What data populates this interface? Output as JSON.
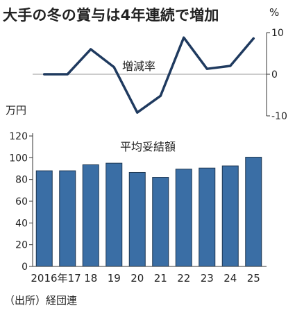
{
  "title": "大手の冬の賞与は4年連続で増加",
  "source": "（出所）経団連",
  "chart_data": [
    {
      "type": "line",
      "title": "増減率",
      "unit": "%",
      "x": [
        "2016年",
        "17",
        "18",
        "19",
        "20",
        "21",
        "22",
        "23",
        "24",
        "25"
      ],
      "values": [
        0.0,
        0.0,
        6.0,
        1.7,
        -9.2,
        -5.2,
        8.8,
        1.3,
        2.0,
        8.6
      ],
      "ylim": [
        -10,
        10
      ],
      "yticks": [
        "10",
        "0",
        "-10"
      ],
      "color": "#1f3a5f"
    },
    {
      "type": "bar",
      "title": "平均妥結額",
      "unit": "万円",
      "categories": [
        "2016年",
        "17",
        "18",
        "19",
        "20",
        "21",
        "22",
        "23",
        "24",
        "25"
      ],
      "xtick_labels": [
        "2016年17",
        "18",
        "19",
        "20",
        "21",
        "22",
        "23",
        "24",
        "25"
      ],
      "values": [
        88,
        88,
        93.5,
        95,
        86.5,
        82,
        89.5,
        90.5,
        92.5,
        100.5
      ],
      "ylim": [
        0,
        120
      ],
      "yticks": [
        "0",
        "20",
        "40",
        "60",
        "80",
        "100",
        "120"
      ],
      "color": "#3a6ea5"
    }
  ]
}
